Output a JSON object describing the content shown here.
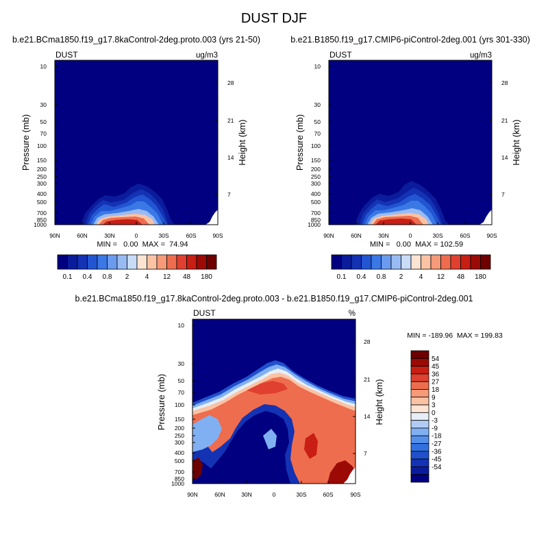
{
  "figure_title": "DUST DJF",
  "colors": {
    "abs_levels": [
      "#000080",
      "#0a1c9c",
      "#1432b4",
      "#2155d2",
      "#3a78e6",
      "#6a9bee",
      "#99bbf4",
      "#c8dcf8",
      "#fde3d2",
      "#fbc2a4",
      "#f69a78",
      "#ee6d4e",
      "#e04030",
      "#c81e14",
      "#9c0a06",
      "#6e0000"
    ],
    "diff_levels": [
      "#000080",
      "#0a1c9c",
      "#1432b4",
      "#2050cc",
      "#3270e0",
      "#5490ea",
      "#80b0f2",
      "#b0ccf6",
      "#e8eef8",
      "#fde3d2",
      "#fbc2a4",
      "#f69a78",
      "#ee6d4e",
      "#e04030",
      "#c81e14",
      "#9c0a06",
      "#6e0000"
    ]
  },
  "chart_data": [
    {
      "type": "contour",
      "title": "b.e21.BCma1850.f19_g17.8kaControl-2deg.proto.003 (yrs 21-50)",
      "variable_label": "DUST",
      "units_label": "ug/m3",
      "ylabel": "Pressure (mb)",
      "y2label": "Height (km)",
      "x_ticks": [
        "90N",
        "60N",
        "30N",
        "0",
        "30S",
        "60S",
        "90S"
      ],
      "y_ticks": [
        "10",
        "30",
        "50",
        "70",
        "100",
        "150",
        "200",
        "250",
        "300",
        "400",
        "500",
        "700",
        "850",
        "1000"
      ],
      "y2_ticks": [
        "28",
        "21",
        "14",
        "7"
      ],
      "stats_text": "MIN =   0.00  MAX =  74.94",
      "min": 0.0,
      "max": 74.94,
      "colorbar_ticks": [
        "0.1",
        "0.4",
        "0.8",
        "2",
        "4",
        "12",
        "48",
        "180"
      ],
      "colorbar_orientation": "horizontal"
    },
    {
      "type": "contour",
      "title": "b.e21.B1850.f19_g17.CMIP6-piControl-2deg.001 (yrs 301-330)",
      "variable_label": "DUST",
      "units_label": "ug/m3",
      "ylabel": "Pressure (mb)",
      "y2label": "Height (km)",
      "x_ticks": [
        "90N",
        "60N",
        "30N",
        "0",
        "30S",
        "60S",
        "90S"
      ],
      "y_ticks": [
        "10",
        "30",
        "50",
        "70",
        "100",
        "150",
        "200",
        "250",
        "300",
        "400",
        "500",
        "700",
        "850",
        "1000"
      ],
      "y2_ticks": [
        "28",
        "21",
        "14",
        "7"
      ],
      "stats_text": "MIN =   0.00  MAX = 102.59",
      "min": 0.0,
      "max": 102.59,
      "colorbar_ticks": [
        "0.1",
        "0.4",
        "0.8",
        "2",
        "4",
        "12",
        "48",
        "180"
      ],
      "colorbar_orientation": "horizontal"
    },
    {
      "type": "contour",
      "title": "b.e21.BCma1850.f19_g17.8kaControl-2deg.proto.003 - b.e21.B1850.f19_g17.CMIP6-piControl-2deg.001",
      "variable_label": "DUST",
      "units_label": "%",
      "ylabel": "Pressure (mb)",
      "y2label": "Height (km)",
      "x_ticks": [
        "90N",
        "60N",
        "30N",
        "0",
        "30S",
        "60S",
        "90S"
      ],
      "y_ticks": [
        "10",
        "30",
        "50",
        "70",
        "100",
        "150",
        "200",
        "250",
        "300",
        "400",
        "500",
        "700",
        "850",
        "1000"
      ],
      "y2_ticks": [
        "28",
        "21",
        "14",
        "7"
      ],
      "stats_text": "MIN = -189.96  MAX = 199.83",
      "min": -189.96,
      "max": 199.83,
      "colorbar_ticks": [
        "54",
        "45",
        "36",
        "27",
        "18",
        "9",
        "3",
        "0",
        "-3",
        "-9",
        "-18",
        "-27",
        "-36",
        "-45",
        "-54"
      ],
      "colorbar_orientation": "vertical"
    }
  ]
}
